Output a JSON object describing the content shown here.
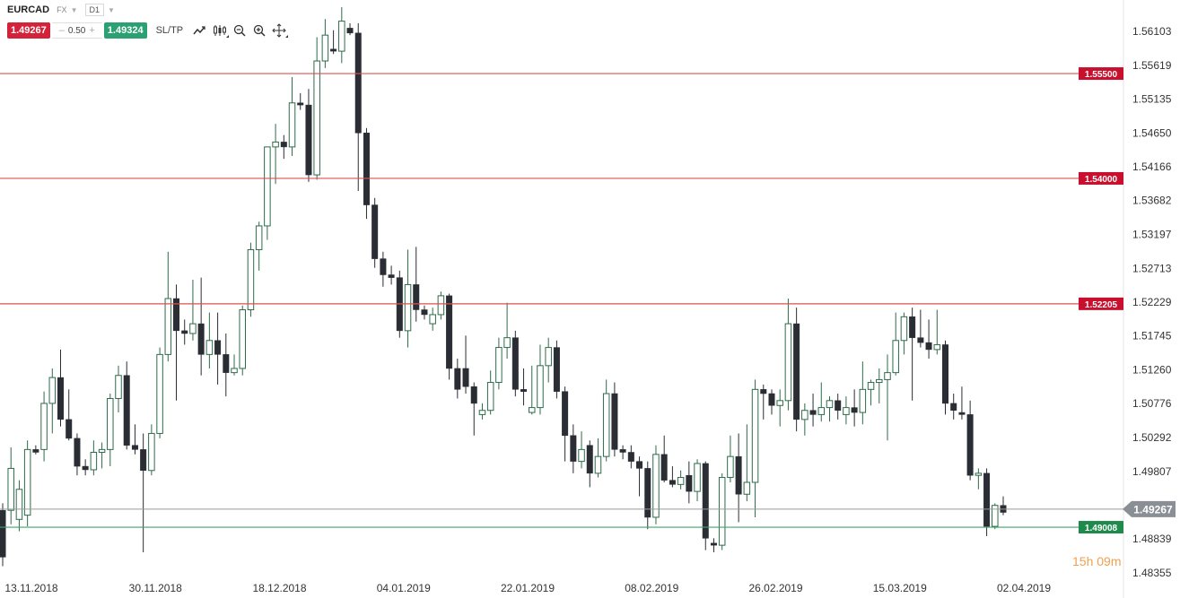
{
  "toolbar": {
    "symbol": "EURCAD",
    "market": "FX",
    "timeframe": "D1",
    "sell_price": "1.49267",
    "lot_minus": "–",
    "lot_value": "0.50",
    "lot_plus": "+",
    "buy_price": "1.49324",
    "sltp_label": "SL/TP",
    "icons": [
      "line-chart-icon",
      "candlestick-chart-icon",
      "zoom-out-icon",
      "zoom-in-icon",
      "move-crosshair-icon"
    ]
  },
  "countdown": {
    "hours": "15",
    "h_unit": "h",
    "minutes": "09",
    "m_unit": "m"
  },
  "colors": {
    "bear": "#2a2d34",
    "bull_outline": "#2d6b4a",
    "resistance_line": "#d9534f",
    "resistance_label": "#c8102e",
    "support_line": "#3fa66b",
    "support_label": "#1f8a4c",
    "current_price_line": "#9a9a9a",
    "current_price_label": "#8a8f96",
    "axis_text": "#333333"
  },
  "chart_data": {
    "type": "candlestick",
    "symbol": "EURCAD",
    "timeframe": "D1",
    "y_ticks": [
      1.56103,
      1.55619,
      1.55135,
      1.5465,
      1.54166,
      1.53682,
      1.53197,
      1.52713,
      1.52229,
      1.51745,
      1.5126,
      1.50776,
      1.50292,
      1.49807,
      1.49323,
      1.48839,
      1.48355
    ],
    "y_tick_labels": [
      "1.56103",
      "1.55619",
      "1.55135",
      "1.54650",
      "1.54166",
      "1.53682",
      "1.53197",
      "1.52713",
      "1.52229",
      "1.51745",
      "1.51260",
      "1.50776",
      "1.50292",
      "1.49807",
      "1.49323",
      "1.48839",
      "1.48355"
    ],
    "ylim": [
      1.4829,
      1.5645
    ],
    "x_labels": [
      "13.11.2018",
      "30.11.2018",
      "18.12.2018",
      "04.01.2019",
      "22.01.2019",
      "08.02.2019",
      "26.02.2019",
      "15.03.2019",
      "02.04.2019"
    ],
    "horizontal_lines": [
      {
        "value": 1.555,
        "label": "1.55500",
        "kind": "resistance"
      },
      {
        "value": 1.54,
        "label": "1.54000",
        "kind": "resistance"
      },
      {
        "value": 1.52205,
        "label": "1.52205",
        "kind": "resistance"
      },
      {
        "value": 1.49008,
        "label": "1.49008",
        "kind": "support"
      }
    ],
    "current_price": {
      "value": 1.49267,
      "label": "1.49267"
    },
    "candles": [
      {
        "o": 1.4925,
        "h": 1.4935,
        "l": 1.4845,
        "c": 1.4858
      },
      {
        "o": 1.4925,
        "h": 1.5015,
        "l": 1.4905,
        "c": 1.4985
      },
      {
        "o": 1.4912,
        "h": 1.4968,
        "l": 1.4895,
        "c": 1.4955
      },
      {
        "o": 1.4918,
        "h": 1.5025,
        "l": 1.4902,
        "c": 1.5012
      },
      {
        "o": 1.5012,
        "h": 1.5018,
        "l": 1.5005,
        "c": 1.5008
      },
      {
        "o": 1.5012,
        "h": 1.5095,
        "l": 1.4995,
        "c": 1.5078
      },
      {
        "o": 1.5078,
        "h": 1.5128,
        "l": 1.5035,
        "c": 1.5115
      },
      {
        "o": 1.5115,
        "h": 1.5155,
        "l": 1.5045,
        "c": 1.5055
      },
      {
        "o": 1.5055,
        "h": 1.5098,
        "l": 1.5025,
        "c": 1.5028
      },
      {
        "o": 1.5028,
        "h": 1.5035,
        "l": 1.4975,
        "c": 1.4988
      },
      {
        "o": 1.4988,
        "h": 1.4998,
        "l": 1.4975,
        "c": 1.4983
      },
      {
        "o": 1.4983,
        "h": 1.5025,
        "l": 1.4975,
        "c": 1.5008
      },
      {
        "o": 1.5008,
        "h": 1.5022,
        "l": 1.4985,
        "c": 1.5012
      },
      {
        "o": 1.5012,
        "h": 1.5092,
        "l": 1.4988,
        "c": 1.5085
      },
      {
        "o": 1.5085,
        "h": 1.5132,
        "l": 1.5065,
        "c": 1.5118
      },
      {
        "o": 1.5118,
        "h": 1.5138,
        "l": 1.5012,
        "c": 1.5018
      },
      {
        "o": 1.5018,
        "h": 1.5048,
        "l": 1.5005,
        "c": 1.5012
      },
      {
        "o": 1.5012,
        "h": 1.5035,
        "l": 1.4865,
        "c": 1.4982
      },
      {
        "o": 1.4982,
        "h": 1.5048,
        "l": 1.4975,
        "c": 1.5035
      },
      {
        "o": 1.5035,
        "h": 1.5158,
        "l": 1.5028,
        "c": 1.5148
      },
      {
        "o": 1.5148,
        "h": 1.5295,
        "l": 1.5138,
        "c": 1.5228
      },
      {
        "o": 1.5228,
        "h": 1.5248,
        "l": 1.5082,
        "c": 1.5182
      },
      {
        "o": 1.5182,
        "h": 1.5198,
        "l": 1.5162,
        "c": 1.5178
      },
      {
        "o": 1.5178,
        "h": 1.5255,
        "l": 1.5168,
        "c": 1.5192
      },
      {
        "o": 1.5192,
        "h": 1.5258,
        "l": 1.5118,
        "c": 1.5148
      },
      {
        "o": 1.5148,
        "h": 1.5208,
        "l": 1.5128,
        "c": 1.5168
      },
      {
        "o": 1.5168,
        "h": 1.5208,
        "l": 1.5105,
        "c": 1.5148
      },
      {
        "o": 1.5148,
        "h": 1.5178,
        "l": 1.5088,
        "c": 1.5122
      },
      {
        "o": 1.5122,
        "h": 1.5148,
        "l": 1.5118,
        "c": 1.5128
      },
      {
        "o": 1.5128,
        "h": 1.5218,
        "l": 1.5118,
        "c": 1.5212
      },
      {
        "o": 1.5212,
        "h": 1.5308,
        "l": 1.5202,
        "c": 1.5298
      },
      {
        "o": 1.5298,
        "h": 1.5338,
        "l": 1.5268,
        "c": 1.5332
      },
      {
        "o": 1.5332,
        "h": 1.5442,
        "l": 1.5312,
        "c": 1.5445
      },
      {
        "o": 1.5445,
        "h": 1.5478,
        "l": 1.5392,
        "c": 1.5452
      },
      {
        "o": 1.5452,
        "h": 1.5462,
        "l": 1.5428,
        "c": 1.5445
      },
      {
        "o": 1.5445,
        "h": 1.5545,
        "l": 1.5432,
        "c": 1.5508
      },
      {
        "o": 1.5508,
        "h": 1.5522,
        "l": 1.5498,
        "c": 1.5505
      },
      {
        "o": 1.5505,
        "h": 1.5528,
        "l": 1.5395,
        "c": 1.5405
      },
      {
        "o": 1.5405,
        "h": 1.5602,
        "l": 1.5398,
        "c": 1.5568
      },
      {
        "o": 1.5568,
        "h": 1.5628,
        "l": 1.5558,
        "c": 1.5605
      },
      {
        "o": 1.5585,
        "h": 1.5612,
        "l": 1.5578,
        "c": 1.5582
      },
      {
        "o": 1.5582,
        "h": 1.5645,
        "l": 1.5565,
        "c": 1.5625
      },
      {
        "o": 1.5615,
        "h": 1.5622,
        "l": 1.5605,
        "c": 1.5608
      },
      {
        "o": 1.5608,
        "h": 1.5622,
        "l": 1.5382,
        "c": 1.5465
      },
      {
        "o": 1.5465,
        "h": 1.5472,
        "l": 1.5342,
        "c": 1.5362
      },
      {
        "o": 1.5362,
        "h": 1.5372,
        "l": 1.5272,
        "c": 1.5285
      },
      {
        "o": 1.5285,
        "h": 1.5295,
        "l": 1.5245,
        "c": 1.5262
      },
      {
        "o": 1.5262,
        "h": 1.5275,
        "l": 1.5248,
        "c": 1.5258
      },
      {
        "o": 1.5258,
        "h": 1.5268,
        "l": 1.5172,
        "c": 1.5182
      },
      {
        "o": 1.5182,
        "h": 1.5298,
        "l": 1.5158,
        "c": 1.5248
      },
      {
        "o": 1.5248,
        "h": 1.5302,
        "l": 1.5195,
        "c": 1.5212
      },
      {
        "o": 1.5212,
        "h": 1.5218,
        "l": 1.5198,
        "c": 1.5205
      },
      {
        "o": 1.5192,
        "h": 1.5215,
        "l": 1.5182,
        "c": 1.5205
      },
      {
        "o": 1.5205,
        "h": 1.5238,
        "l": 1.5198,
        "c": 1.5232
      },
      {
        "o": 1.5232,
        "h": 1.5235,
        "l": 1.5112,
        "c": 1.5128
      },
      {
        "o": 1.5128,
        "h": 1.5142,
        "l": 1.5085,
        "c": 1.5098
      },
      {
        "o": 1.5128,
        "h": 1.5175,
        "l": 1.5092,
        "c": 1.5102
      },
      {
        "o": 1.5102,
        "h": 1.5108,
        "l": 1.5032,
        "c": 1.5078
      },
      {
        "o": 1.5062,
        "h": 1.5078,
        "l": 1.5055,
        "c": 1.5068
      },
      {
        "o": 1.5068,
        "h": 1.5125,
        "l": 1.5062,
        "c": 1.5108
      },
      {
        "o": 1.5108,
        "h": 1.5172,
        "l": 1.5098,
        "c": 1.5158
      },
      {
        "o": 1.5158,
        "h": 1.5222,
        "l": 1.5142,
        "c": 1.5172
      },
      {
        "o": 1.5172,
        "h": 1.5182,
        "l": 1.5088,
        "c": 1.5098
      },
      {
        "o": 1.5098,
        "h": 1.5128,
        "l": 1.5075,
        "c": 1.5095
      },
      {
        "o": 1.5065,
        "h": 1.5132,
        "l": 1.5062,
        "c": 1.5072
      },
      {
        "o": 1.5072,
        "h": 1.5162,
        "l": 1.5062,
        "c": 1.5132
      },
      {
        "o": 1.5132,
        "h": 1.5172,
        "l": 1.5108,
        "c": 1.5158
      },
      {
        "o": 1.5158,
        "h": 1.5168,
        "l": 1.5085,
        "c": 1.5095
      },
      {
        "o": 1.5095,
        "h": 1.5102,
        "l": 1.4995,
        "c": 1.5032
      },
      {
        "o": 1.5032,
        "h": 1.5048,
        "l": 1.4978,
        "c": 1.4995
      },
      {
        "o": 1.4995,
        "h": 1.5038,
        "l": 1.4985,
        "c": 1.5012
      },
      {
        "o": 1.5018,
        "h": 1.5025,
        "l": 1.4958,
        "c": 1.4978
      },
      {
        "o": 1.4978,
        "h": 1.5028,
        "l": 1.4972,
        "c": 1.5002
      },
      {
        "o": 1.5002,
        "h": 1.5112,
        "l": 1.4995,
        "c": 1.5092
      },
      {
        "o": 1.5092,
        "h": 1.5108,
        "l": 1.5002,
        "c": 1.5012
      },
      {
        "o": 1.5012,
        "h": 1.5018,
        "l": 1.4998,
        "c": 1.5008
      },
      {
        "o": 1.5008,
        "h": 1.5018,
        "l": 1.4985,
        "c": 1.4995
      },
      {
        "o": 1.4995,
        "h": 1.5002,
        "l": 1.4945,
        "c": 1.4985
      },
      {
        "o": 1.4985,
        "h": 1.4995,
        "l": 1.4898,
        "c": 1.4915
      },
      {
        "o": 1.4915,
        "h": 1.5018,
        "l": 1.4905,
        "c": 1.5005
      },
      {
        "o": 1.5005,
        "h": 1.5032,
        "l": 1.4965,
        "c": 1.4968
      },
      {
        "o": 1.4968,
        "h": 1.4988,
        "l": 1.4958,
        "c": 1.4962
      },
      {
        "o": 1.4962,
        "h": 1.4982,
        "l": 1.4955,
        "c": 1.4972
      },
      {
        "o": 1.4975,
        "h": 1.4995,
        "l": 1.4935,
        "c": 1.4952
      },
      {
        "o": 1.4952,
        "h": 1.4998,
        "l": 1.4938,
        "c": 1.4992
      },
      {
        "o": 1.4992,
        "h": 1.4995,
        "l": 1.4868,
        "c": 1.4885
      },
      {
        "o": 1.4878,
        "h": 1.4885,
        "l": 1.4865,
        "c": 1.4875
      },
      {
        "o": 1.4875,
        "h": 1.4978,
        "l": 1.4868,
        "c": 1.4972
      },
      {
        "o": 1.4972,
        "h": 1.5032,
        "l": 1.4965,
        "c": 1.5002
      },
      {
        "o": 1.5002,
        "h": 1.5035,
        "l": 1.4908,
        "c": 1.4948
      },
      {
        "o": 1.4948,
        "h": 1.5048,
        "l": 1.4938,
        "c": 1.4965
      },
      {
        "o": 1.4965,
        "h": 1.5112,
        "l": 1.4915,
        "c": 1.5098
      },
      {
        "o": 1.5098,
        "h": 1.5105,
        "l": 1.5055,
        "c": 1.5092
      },
      {
        "o": 1.5092,
        "h": 1.5098,
        "l": 1.5062,
        "c": 1.5075
      },
      {
        "o": 1.5075,
        "h": 1.5098,
        "l": 1.5045,
        "c": 1.5082
      },
      {
        "o": 1.5082,
        "h": 1.5228,
        "l": 1.5068,
        "c": 1.5192
      },
      {
        "o": 1.5192,
        "h": 1.5215,
        "l": 1.5038,
        "c": 1.5055
      },
      {
        "o": 1.5055,
        "h": 1.5078,
        "l": 1.5032,
        "c": 1.5068
      },
      {
        "o": 1.5068,
        "h": 1.5092,
        "l": 1.5045,
        "c": 1.5062
      },
      {
        "o": 1.5062,
        "h": 1.5108,
        "l": 1.5052,
        "c": 1.5072
      },
      {
        "o": 1.5072,
        "h": 1.5088,
        "l": 1.5052,
        "c": 1.5082
      },
      {
        "o": 1.5082,
        "h": 1.5092,
        "l": 1.5055,
        "c": 1.5068
      },
      {
        "o": 1.5062,
        "h": 1.5088,
        "l": 1.5048,
        "c": 1.5072
      },
      {
        "o": 1.5072,
        "h": 1.5098,
        "l": 1.5045,
        "c": 1.5065
      },
      {
        "o": 1.5065,
        "h": 1.5138,
        "l": 1.5048,
        "c": 1.5098
      },
      {
        "o": 1.5098,
        "h": 1.5112,
        "l": 1.5075,
        "c": 1.5108
      },
      {
        "o": 1.5108,
        "h": 1.5128,
        "l": 1.5078,
        "c": 1.5112
      },
      {
        "o": 1.5112,
        "h": 1.5148,
        "l": 1.5025,
        "c": 1.5122
      },
      {
        "o": 1.5122,
        "h": 1.5208,
        "l": 1.5118,
        "c": 1.5168
      },
      {
        "o": 1.5168,
        "h": 1.5208,
        "l": 1.5148,
        "c": 1.5202
      },
      {
        "o": 1.5202,
        "h": 1.5215,
        "l": 1.5082,
        "c": 1.5172
      },
      {
        "o": 1.5172,
        "h": 1.5212,
        "l": 1.5158,
        "c": 1.5165
      },
      {
        "o": 1.5165,
        "h": 1.5198,
        "l": 1.5142,
        "c": 1.5155
      },
      {
        "o": 1.5155,
        "h": 1.5212,
        "l": 1.5148,
        "c": 1.5162
      },
      {
        "o": 1.5162,
        "h": 1.5168,
        "l": 1.5062,
        "c": 1.5078
      },
      {
        "o": 1.5078,
        "h": 1.5092,
        "l": 1.5055,
        "c": 1.5068
      },
      {
        "o": 1.5065,
        "h": 1.5102,
        "l": 1.5055,
        "c": 1.5062
      },
      {
        "o": 1.5062,
        "h": 1.5082,
        "l": 1.4968,
        "c": 1.4975
      },
      {
        "o": 1.4975,
        "h": 1.4985,
        "l": 1.4955,
        "c": 1.4978
      },
      {
        "o": 1.4978,
        "h": 1.4985,
        "l": 1.4888,
        "c": 1.4902
      },
      {
        "o": 1.4902,
        "h": 1.4935,
        "l": 1.4898,
        "c": 1.4932
      },
      {
        "o": 1.4932,
        "h": 1.4945,
        "l": 1.4918,
        "c": 1.4922
      }
    ]
  }
}
